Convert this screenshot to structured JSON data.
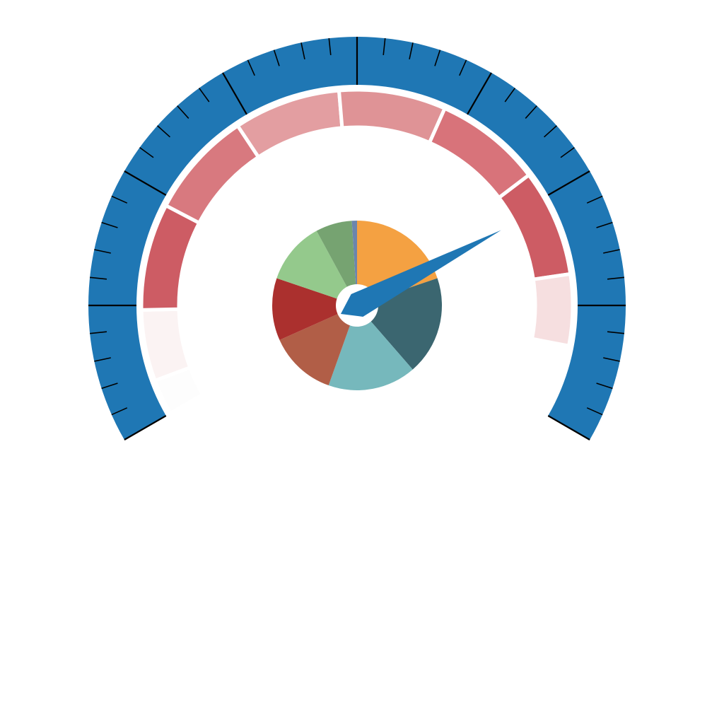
{
  "chart_data": {
    "type": "gauge",
    "title": "",
    "gauge": {
      "min": 0,
      "max": 100,
      "value": 76,
      "start_angle_deg": 210,
      "end_angle_deg": -30,
      "major_tick_count": 9,
      "minor_ticks_per_major": 5,
      "tick_labels": []
    },
    "bands": [
      {
        "value": 4,
        "color": "#fdfdfd"
      },
      {
        "value": 8,
        "color": "#fbf3f3"
      },
      {
        "value": 12,
        "color": "#cd5c64"
      },
      {
        "value": 12,
        "color": "#d8797f"
      },
      {
        "value": 12,
        "color": "#e39ea1"
      },
      {
        "value": 12,
        "color": "#df9396"
      },
      {
        "value": 12,
        "color": "#d8737a"
      },
      {
        "value": 12,
        "color": "#cd5c64"
      },
      {
        "value": 8,
        "color": "#f6dfe0"
      }
    ],
    "pie": {
      "type": "pie",
      "slices": [
        {
          "value": 20,
          "color": "#f4a142"
        },
        {
          "value": 19,
          "color": "#3b6670"
        },
        {
          "value": 17,
          "color": "#76b8bc"
        },
        {
          "value": 13,
          "color": "#b15e47"
        },
        {
          "value": 12,
          "color": "#ab302e"
        },
        {
          "value": 12,
          "color": "#94c98c"
        },
        {
          "value": 7,
          "color": "#76a371"
        },
        {
          "value": 1,
          "color": "#6b85ad"
        }
      ]
    },
    "colors": {
      "axis_band": "#1f77b4",
      "needle": "#1f77b4",
      "ticks": "#000000",
      "hub": "#ffffff"
    }
  }
}
